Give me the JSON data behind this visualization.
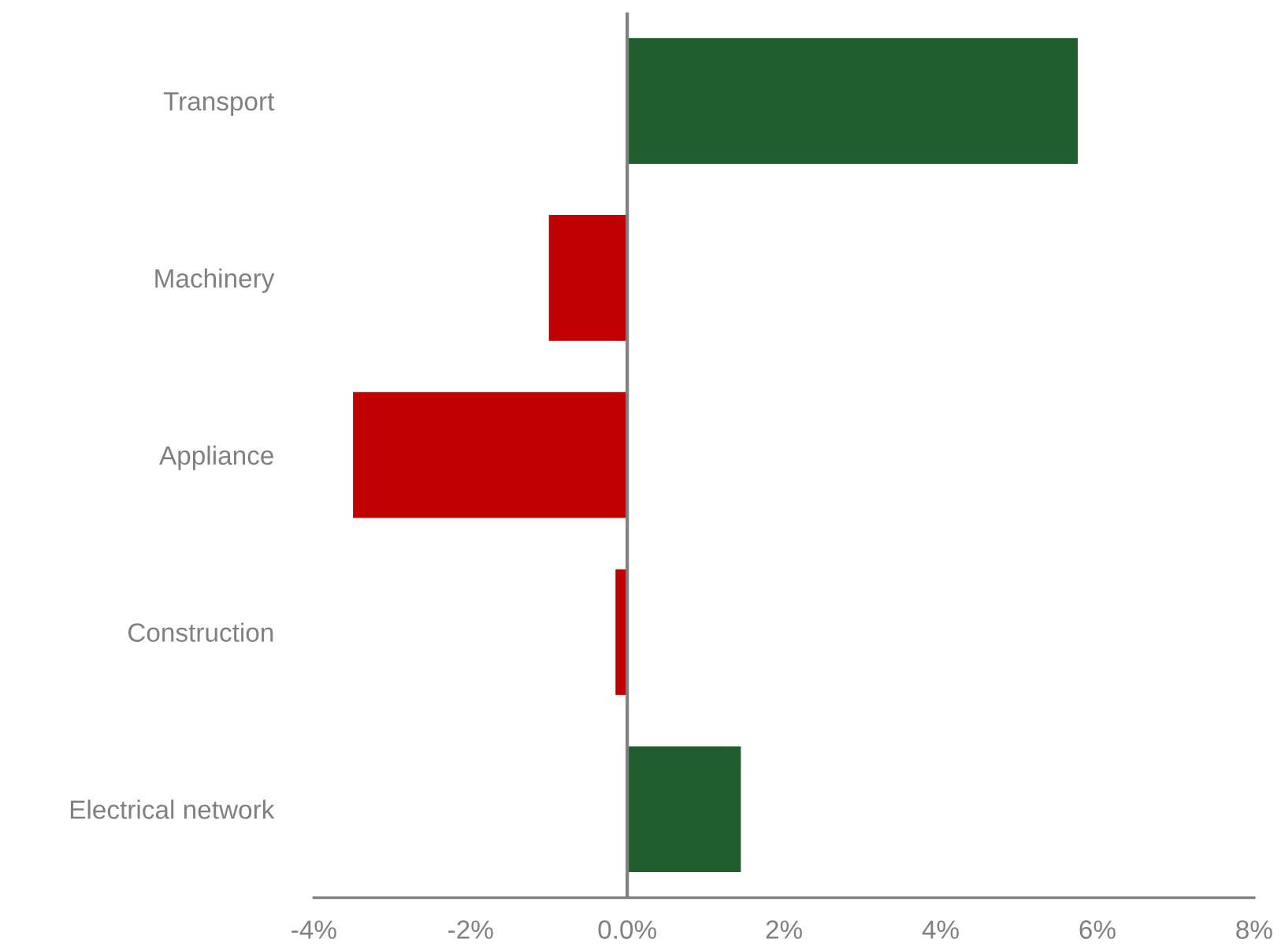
{
  "chart_data": {
    "type": "bar",
    "orientation": "horizontal",
    "categories": [
      "Transport",
      "Machinery",
      "Appliance",
      "Construction",
      "Electrical network"
    ],
    "values": [
      5.75,
      -1.0,
      -3.5,
      -0.15,
      1.45
    ],
    "colors": [
      "#1f5c2e",
      "#c00000",
      "#c00000",
      "#c00000",
      "#1f5c2e"
    ],
    "xlim": [
      -4,
      8
    ],
    "xticks": [
      {
        "value": -4,
        "label": "-4%"
      },
      {
        "value": -2,
        "label": "-2%"
      },
      {
        "value": 0,
        "label": "0.0%"
      },
      {
        "value": 2,
        "label": "2%"
      },
      {
        "value": 4,
        "label": "4%"
      },
      {
        "value": 6,
        "label": "6%"
      },
      {
        "value": 8,
        "label": "8%"
      }
    ],
    "ref_lines": [
      {
        "axis": "x",
        "value": 0,
        "color": "#7f7f7f"
      }
    ],
    "grid": false,
    "legend": false
  }
}
